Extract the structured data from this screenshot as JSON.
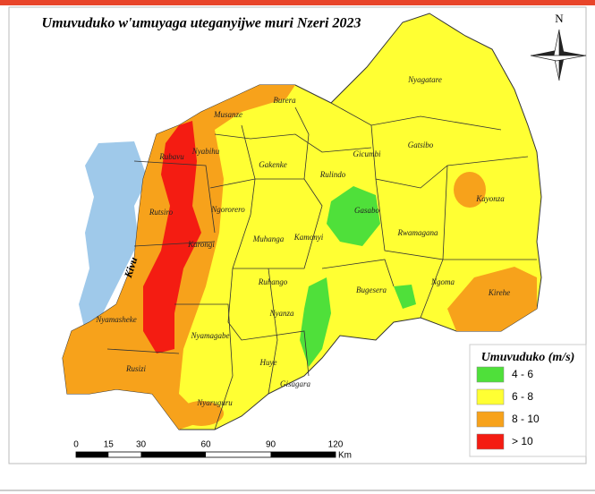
{
  "title": "Umuvuduko w'umuyaga uteganyijwe muri Nzeri 2023",
  "north": "N",
  "lake": "Kivu",
  "districts": [
    "Nyagatare",
    "Gatsibo",
    "Kayonza",
    "Kirehe",
    "Ngoma",
    "Rwamagana",
    "Gasabo",
    "Bugesera",
    "Gicumbi",
    "Rulindo",
    "Burera",
    "Musanze",
    "Gakenke",
    "Nyabihu",
    "Rubavu",
    "Rutsiro",
    "Ngororero",
    "Muhanga",
    "Kamonyi",
    "Karongi",
    "Ruhango",
    "Nyanza",
    "Nyamasheke",
    "Nyamagabe",
    "Huye",
    "Rusizi",
    "Gisagara",
    "Nyaruguru"
  ],
  "legend": {
    "title": "Umuvuduko (m/s)",
    "items": [
      {
        "label": "4 - 6",
        "color": "#4fe03a"
      },
      {
        "label": "6 - 8",
        "color": "#ffff33"
      },
      {
        "label": "8 - 10",
        "color": "#f7a21b"
      },
      {
        "label": "> 10",
        "color": "#f41c12"
      }
    ]
  },
  "scale_bar": {
    "ticks": [
      0,
      15,
      30,
      60,
      90,
      120
    ],
    "unit": "Km"
  }
}
